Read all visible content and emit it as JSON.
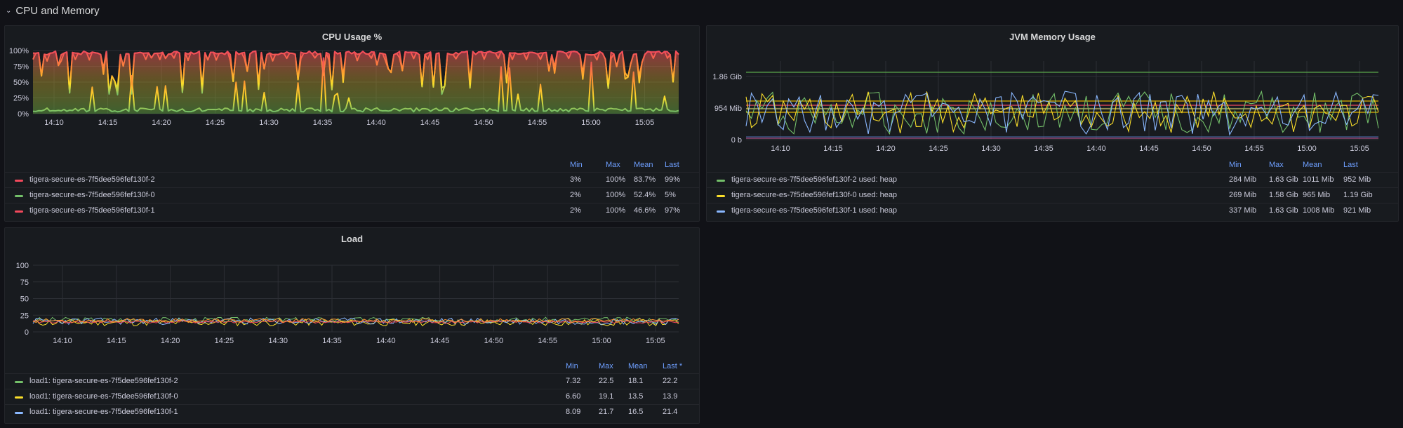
{
  "row": {
    "title": "CPU and Memory"
  },
  "time_ticks": [
    "14:10",
    "14:15",
    "14:20",
    "14:25",
    "14:30",
    "14:35",
    "14:40",
    "14:45",
    "14:50",
    "14:55",
    "15:00",
    "15:05"
  ],
  "panels": {
    "cpu": {
      "title": "CPU Usage %",
      "y_ticks": [
        "100%",
        "75%",
        "50%",
        "25%",
        "0%"
      ],
      "legend_headers": [
        "Min",
        "Max",
        "Mean",
        "Last"
      ],
      "legend": [
        {
          "name": "tigera-secure-es-7f5dee596fef130f-2",
          "color": "#f2495c",
          "min": "3%",
          "max": "100%",
          "mean": "83.7%",
          "last": "99%"
        },
        {
          "name": "tigera-secure-es-7f5dee596fef130f-0",
          "color": "#73bf69",
          "min": "2%",
          "max": "100%",
          "mean": "52.4%",
          "last": "5%"
        },
        {
          "name": "tigera-secure-es-7f5dee596fef130f-1",
          "color": "#f2495c",
          "min": "2%",
          "max": "100%",
          "mean": "46.6%",
          "last": "97%"
        }
      ]
    },
    "jvm": {
      "title": "JVM Memory Usage",
      "y_ticks": [
        "1.86 Gib",
        "954 Mib",
        "0 b"
      ],
      "legend_headers": [
        "Min",
        "Max",
        "Mean",
        "Last"
      ],
      "legend": [
        {
          "name": "tigera-secure-es-7f5dee596fef130f-2 used: heap",
          "color": "#73bf69",
          "min": "284 Mib",
          "max": "1.63 Gib",
          "mean": "1011 Mib",
          "last": "952 Mib"
        },
        {
          "name": "tigera-secure-es-7f5dee596fef130f-0 used: heap",
          "color": "#fade2a",
          "min": "269 Mib",
          "max": "1.58 Gib",
          "mean": "965 Mib",
          "last": "1.19 Gib"
        },
        {
          "name": "tigera-secure-es-7f5dee596fef130f-1 used: heap",
          "color": "#8ab8ff",
          "min": "337 Mib",
          "max": "1.63 Gib",
          "mean": "1008 Mib",
          "last": "921 Mib"
        }
      ]
    },
    "load": {
      "title": "Load",
      "y_ticks": [
        "100",
        "75",
        "50",
        "25",
        "0"
      ],
      "legend_headers": [
        "Min",
        "Max",
        "Mean",
        "Last *"
      ],
      "legend": [
        {
          "name": "load1: tigera-secure-es-7f5dee596fef130f-2",
          "color": "#73bf69",
          "min": "7.32",
          "max": "22.5",
          "mean": "18.1",
          "last": "22.2"
        },
        {
          "name": "load1: tigera-secure-es-7f5dee596fef130f-0",
          "color": "#fade2a",
          "min": "6.60",
          "max": "19.1",
          "mean": "13.5",
          "last": "13.9"
        },
        {
          "name": "load1: tigera-secure-es-7f5dee596fef130f-1",
          "color": "#8ab8ff",
          "min": "8.09",
          "max": "21.7",
          "mean": "16.5",
          "last": "21.4"
        }
      ]
    }
  },
  "chart_data": [
    {
      "type": "line",
      "title": "CPU Usage %",
      "ylim": [
        0,
        100
      ],
      "y_unit": "%",
      "x_range": [
        "14:07",
        "15:08"
      ],
      "series": [
        {
          "name": "tigera-secure-es-7f5dee596fef130f-2",
          "approx_level": 84
        },
        {
          "name": "tigera-secure-es-7f5dee596fef130f-0",
          "approx_level": 52
        },
        {
          "name": "tigera-secure-es-7f5dee596fef130f-1",
          "approx_level": 47
        }
      ]
    },
    {
      "type": "line",
      "title": "JVM Memory Usage",
      "y_unit": "Mib",
      "ylim": [
        0,
        1905
      ],
      "x_range": [
        "14:07",
        "15:08"
      ],
      "series": [
        {
          "name": "tigera-secure-es-7f5dee596fef130f-2 used: heap",
          "approx_level": 1011
        },
        {
          "name": "tigera-secure-es-7f5dee596fef130f-0 used: heap",
          "approx_level": 965
        },
        {
          "name": "tigera-secure-es-7f5dee596fef130f-1 used: heap",
          "approx_level": 1008
        }
      ]
    },
    {
      "type": "line",
      "title": "Load",
      "ylim": [
        0,
        100
      ],
      "x_range": [
        "14:07",
        "15:08"
      ],
      "series": [
        {
          "name": "load1: tigera-secure-es-7f5dee596fef130f-2",
          "approx_level": 18.1
        },
        {
          "name": "load1: tigera-secure-es-7f5dee596fef130f-0",
          "approx_level": 13.5
        },
        {
          "name": "load1: tigera-secure-es-7f5dee596fef130f-1",
          "approx_level": 16.5
        }
      ]
    }
  ]
}
